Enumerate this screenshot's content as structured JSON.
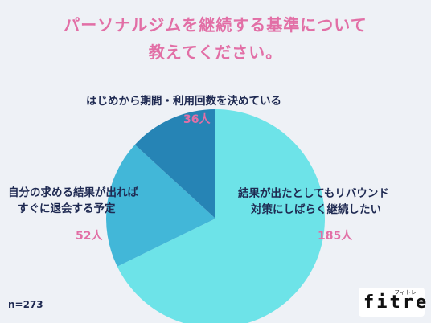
{
  "title_lines": [
    "パーソナルジムを継続する基準について",
    "教えてください。"
  ],
  "chart_data": {
    "type": "pie",
    "title": "パーソナルジムを継続する基準について教えてください。",
    "slices": [
      {
        "label_lines": [
          "結果が出たとしてもリバウンド",
          "対策にしばらく継続したい"
        ],
        "value": 185,
        "value_text": "185人",
        "color": "#6de3e8"
      },
      {
        "label_lines": [
          "自分の求める結果が出れば",
          "すぐに退会する予定"
        ],
        "value": 52,
        "value_text": "52人",
        "color": "#42b7d8"
      },
      {
        "label_lines": [
          "はじめから期間・利用回数を決めている"
        ],
        "value": 36,
        "value_text": "36人",
        "color": "#2684b5"
      }
    ],
    "total_text": "n=273"
  },
  "logo": {
    "main": "fitre",
    "sub": "フィトレ"
  }
}
